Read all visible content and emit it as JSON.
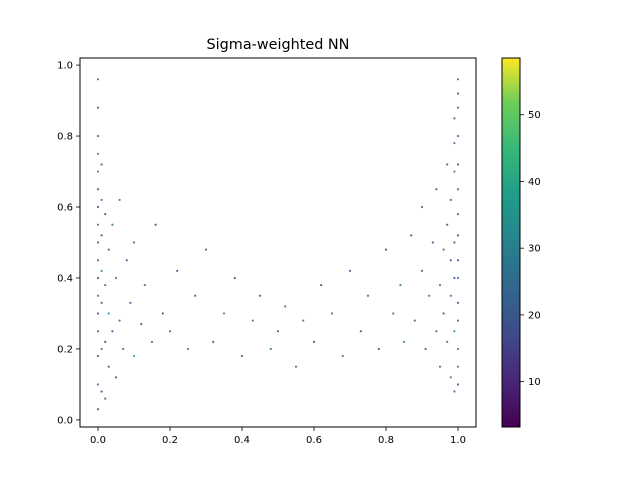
{
  "chart_data": {
    "type": "scatter",
    "title": "Sigma-weighted NN",
    "xlabel": "",
    "ylabel": "",
    "xlim": [
      -0.05,
      1.05
    ],
    "ylim": [
      -0.02,
      1.02
    ],
    "x_ticks": [
      0.0,
      0.2,
      0.4,
      0.6,
      0.8,
      1.0
    ],
    "x_tick_labels": [
      "0.0",
      "0.2",
      "0.4",
      "0.6",
      "0.8",
      "1.0"
    ],
    "y_ticks": [
      0.0,
      0.2,
      0.4,
      0.6,
      0.8,
      1.0
    ],
    "y_tick_labels": [
      "0.0",
      "0.2",
      "0.4",
      "0.6",
      "0.8",
      "1.0"
    ],
    "grid": false,
    "legend": "none",
    "colormap": "viridis",
    "color_range": [
      3.2,
      58.5
    ],
    "colorbar_ticks": [
      10,
      20,
      30,
      40,
      50
    ],
    "colorbar_tick_labels": [
      "10",
      "20",
      "30",
      "40",
      "50"
    ],
    "colorbar_position": "right",
    "point_color_value_typical": 20,
    "x": [
      0.0,
      0.0,
      0.0,
      0.0,
      0.0,
      0.0,
      0.0,
      0.0,
      0.0,
      0.0,
      0.0,
      0.0,
      0.0,
      0.0,
      0.0,
      0.0,
      0.0,
      0.01,
      0.01,
      0.01,
      0.01,
      0.01,
      0.01,
      0.01,
      0.02,
      0.02,
      0.02,
      0.02,
      0.03,
      0.03,
      0.03,
      0.04,
      0.04,
      0.05,
      0.05,
      0.06,
      0.06,
      0.07,
      0.08,
      0.09,
      0.1,
      0.1,
      0.12,
      0.13,
      0.15,
      0.16,
      0.18,
      0.2,
      0.22,
      0.25,
      0.27,
      0.3,
      0.32,
      0.35,
      0.38,
      0.4,
      0.43,
      0.45,
      0.48,
      0.5,
      0.52,
      0.55,
      0.57,
      0.6,
      0.62,
      0.65,
      0.68,
      0.7,
      0.73,
      0.75,
      0.78,
      0.8,
      0.82,
      0.84,
      0.85,
      0.87,
      0.88,
      0.9,
      0.9,
      0.91,
      0.92,
      0.93,
      0.94,
      0.94,
      0.95,
      0.95,
      0.96,
      0.96,
      0.97,
      0.97,
      0.97,
      0.98,
      0.98,
      0.98,
      0.98,
      0.99,
      0.99,
      0.99,
      0.99,
      0.99,
      0.99,
      0.99,
      1.0,
      1.0,
      1.0,
      1.0,
      1.0,
      1.0,
      1.0,
      1.0,
      1.0,
      1.0,
      1.0,
      1.0,
      1.0,
      1.0,
      1.0
    ],
    "y": [
      0.03,
      0.1,
      0.18,
      0.25,
      0.3,
      0.35,
      0.4,
      0.45,
      0.5,
      0.55,
      0.6,
      0.65,
      0.7,
      0.75,
      0.8,
      0.88,
      0.96,
      0.08,
      0.2,
      0.33,
      0.42,
      0.52,
      0.62,
      0.72,
      0.06,
      0.22,
      0.38,
      0.58,
      0.15,
      0.3,
      0.48,
      0.25,
      0.55,
      0.12,
      0.4,
      0.28,
      0.62,
      0.2,
      0.45,
      0.33,
      0.18,
      0.5,
      0.27,
      0.38,
      0.22,
      0.55,
      0.3,
      0.25,
      0.42,
      0.2,
      0.35,
      0.48,
      0.22,
      0.3,
      0.4,
      0.18,
      0.28,
      0.35,
      0.2,
      0.25,
      0.32,
      0.15,
      0.28,
      0.22,
      0.38,
      0.3,
      0.18,
      0.42,
      0.25,
      0.35,
      0.2,
      0.48,
      0.3,
      0.38,
      0.22,
      0.52,
      0.28,
      0.42,
      0.6,
      0.2,
      0.35,
      0.5,
      0.25,
      0.65,
      0.38,
      0.15,
      0.48,
      0.3,
      0.22,
      0.55,
      0.72,
      0.12,
      0.35,
      0.45,
      0.62,
      0.08,
      0.25,
      0.4,
      0.5,
      0.7,
      0.78,
      0.85,
      0.1,
      0.15,
      0.2,
      0.28,
      0.33,
      0.4,
      0.45,
      0.52,
      0.58,
      0.65,
      0.72,
      0.8,
      0.88,
      0.92,
      0.96
    ],
    "c": [
      20,
      22,
      18,
      25,
      20,
      30,
      19,
      21,
      17,
      24,
      20,
      18,
      26,
      22,
      19,
      20,
      21,
      18,
      23,
      20,
      28,
      19,
      21,
      20,
      22,
      17,
      24,
      20,
      19,
      30,
      21,
      18,
      22,
      20,
      25,
      19,
      21,
      23,
      18,
      20,
      35,
      22,
      19,
      21,
      26,
      20,
      18,
      22,
      20,
      24,
      19,
      21,
      17,
      23,
      20,
      19,
      22,
      18,
      21,
      20,
      24,
      19,
      22,
      20,
      18,
      21,
      25,
      20,
      19,
      23,
      20,
      18,
      21,
      22,
      30,
      19,
      20,
      24,
      21,
      18,
      22,
      20,
      26,
      19,
      21,
      20,
      23,
      18,
      22,
      20,
      19,
      24,
      21,
      20,
      18,
      22,
      30,
      20,
      19,
      21,
      23,
      20,
      18,
      22,
      21,
      20,
      19,
      24,
      20,
      18,
      22,
      21,
      20,
      19,
      23,
      20,
      21
    ]
  }
}
